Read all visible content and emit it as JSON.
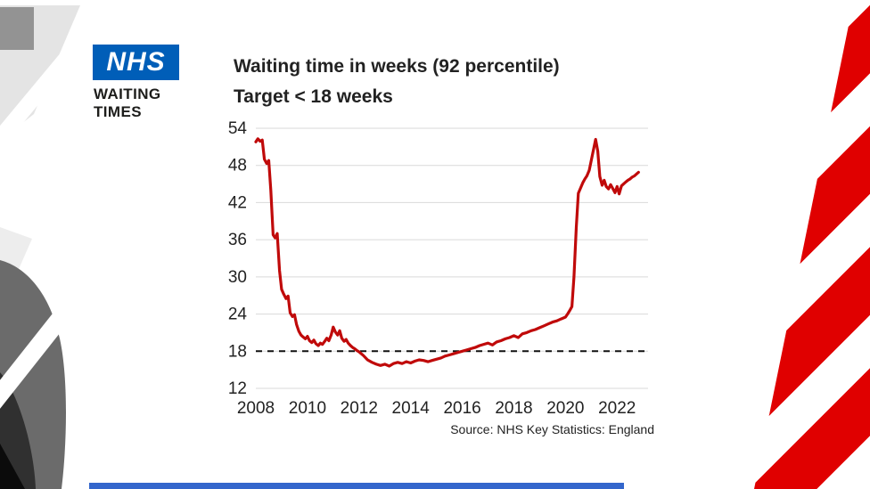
{
  "branding": {
    "nhs_logo_text": "NHS",
    "program_title_line1": "WAITING",
    "program_title_line2": "TIMES",
    "nhs_blue": "#005EB8"
  },
  "chart_data": {
    "type": "line",
    "title_line1": "Waiting time in weeks (92 percentile)",
    "title_line2": "Target < 18 weeks",
    "source": "Source: NHS Key Statistics: England",
    "series_name": "NHS waiting time in weeks (92nd percentile)",
    "xlim": [
      2008,
      2023.2
    ],
    "ylim": [
      12,
      54
    ],
    "x_ticks": [
      2008,
      2010,
      2012,
      2014,
      2016,
      2018,
      2020,
      2022
    ],
    "y_ticks": [
      12,
      18,
      24,
      30,
      36,
      42,
      48,
      54
    ],
    "target_line": 18,
    "grid": true,
    "line_color": "#c00a0a",
    "target_color": "#111111",
    "grid_color": "#d9d9d9",
    "x": [
      2008.0,
      2008.08,
      2008.17,
      2008.25,
      2008.33,
      2008.42,
      2008.5,
      2008.58,
      2008.67,
      2008.75,
      2008.83,
      2008.92,
      2009.0,
      2009.08,
      2009.17,
      2009.25,
      2009.33,
      2009.42,
      2009.5,
      2009.58,
      2009.67,
      2009.75,
      2009.83,
      2009.92,
      2010.0,
      2010.08,
      2010.17,
      2010.25,
      2010.33,
      2010.42,
      2010.5,
      2010.58,
      2010.67,
      2010.75,
      2010.83,
      2010.92,
      2011.0,
      2011.08,
      2011.17,
      2011.25,
      2011.33,
      2011.42,
      2011.5,
      2011.58,
      2011.67,
      2011.75,
      2011.83,
      2011.92,
      2012.0,
      2012.17,
      2012.33,
      2012.5,
      2012.67,
      2012.83,
      2013.0,
      2013.17,
      2013.33,
      2013.5,
      2013.67,
      2013.83,
      2014.0,
      2014.17,
      2014.33,
      2014.5,
      2014.67,
      2014.83,
      2015.0,
      2015.17,
      2015.33,
      2015.5,
      2015.67,
      2015.83,
      2016.0,
      2016.17,
      2016.33,
      2016.5,
      2016.67,
      2016.83,
      2017.0,
      2017.17,
      2017.33,
      2017.5,
      2017.67,
      2017.83,
      2018.0,
      2018.17,
      2018.33,
      2018.5,
      2018.67,
      2018.83,
      2019.0,
      2019.17,
      2019.33,
      2019.5,
      2019.67,
      2019.83,
      2020.0,
      2020.08,
      2020.17,
      2020.25,
      2020.33,
      2020.42,
      2020.5,
      2020.58,
      2020.67,
      2020.75,
      2020.83,
      2020.92,
      2021.0,
      2021.08,
      2021.17,
      2021.25,
      2021.33,
      2021.42,
      2021.5,
      2021.58,
      2021.67,
      2021.75,
      2021.83,
      2021.92,
      2022.0,
      2022.08,
      2022.17,
      2022.25,
      2022.33,
      2022.42,
      2022.5,
      2022.58,
      2022.67,
      2022.75,
      2022.83
    ],
    "y": [
      51.8,
      52.3,
      51.9,
      52.1,
      49.0,
      48.3,
      48.8,
      44.0,
      36.8,
      36.3,
      37.0,
      31.0,
      28.0,
      27.2,
      26.5,
      26.9,
      24.2,
      23.6,
      23.9,
      22.3,
      21.2,
      20.6,
      20.3,
      20.0,
      20.4,
      19.7,
      19.4,
      19.8,
      19.2,
      18.9,
      19.3,
      19.1,
      19.6,
      20.1,
      19.7,
      20.6,
      21.9,
      21.1,
      20.6,
      21.3,
      20.1,
      19.6,
      19.9,
      19.3,
      18.9,
      18.6,
      18.4,
      18.1,
      17.9,
      17.3,
      16.6,
      16.2,
      15.9,
      15.7,
      15.9,
      15.6,
      16.0,
      16.2,
      16.0,
      16.3,
      16.1,
      16.4,
      16.6,
      16.5,
      16.3,
      16.5,
      16.7,
      16.9,
      17.2,
      17.4,
      17.6,
      17.8,
      18.0,
      18.2,
      18.4,
      18.6,
      18.9,
      19.1,
      19.3,
      19.0,
      19.5,
      19.7,
      20.0,
      20.2,
      20.5,
      20.2,
      20.8,
      21.0,
      21.3,
      21.5,
      21.8,
      22.1,
      22.4,
      22.7,
      22.9,
      23.2,
      23.5,
      24.0,
      24.6,
      25.2,
      30.0,
      38.0,
      43.5,
      44.3,
      45.2,
      45.8,
      46.3,
      47.2,
      48.8,
      50.4,
      52.2,
      50.3,
      46.2,
      44.8,
      45.6,
      44.6,
      44.2,
      44.9,
      44.3,
      43.6,
      44.6,
      43.4,
      44.7,
      45.0,
      45.3,
      45.6,
      45.8,
      46.1,
      46.3,
      46.6,
      46.9
    ]
  },
  "decorations": {
    "stripe_red": "#e00000",
    "bottom_bar_blue": "#3366cc"
  }
}
